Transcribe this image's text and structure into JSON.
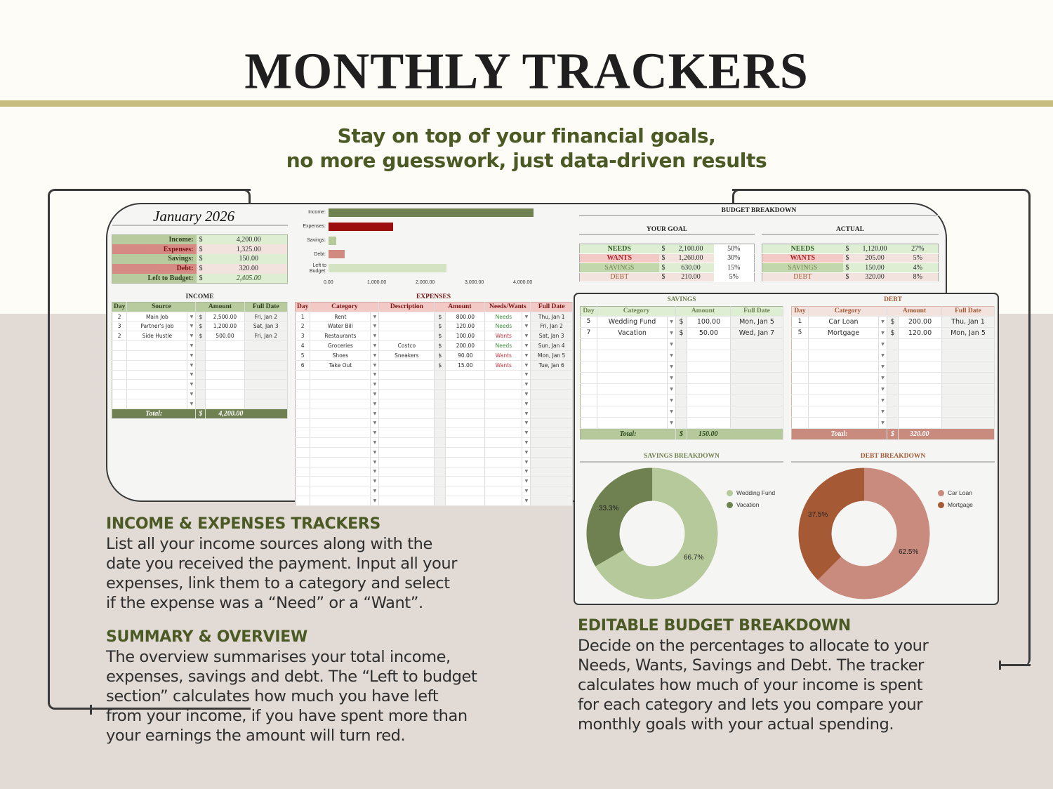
{
  "header": {
    "title": "MONTHLY TRACKERS",
    "subtitle_line1": "Stay on top of your financial goals,",
    "subtitle_line2": "no more guesswork, just data-driven results"
  },
  "summary": {
    "month": "January 2026",
    "rows": [
      {
        "label": "Income:",
        "currency": "$",
        "value": "4,200.00"
      },
      {
        "label": "Expenses:",
        "currency": "$",
        "value": "1,325.00"
      },
      {
        "label": "Savings:",
        "currency": "$",
        "value": "150.00"
      },
      {
        "label": "Debt:",
        "currency": "$",
        "value": "320.00"
      },
      {
        "label": "Left to Budget:",
        "currency": "$",
        "value": "2,405.00"
      }
    ]
  },
  "chart_data": [
    {
      "type": "bar",
      "orientation": "horizontal",
      "title": "",
      "categories": [
        "Income:",
        "Expenses:",
        "Savings:",
        "Debt:",
        "Left to Budget:"
      ],
      "values": [
        4200,
        1325,
        150,
        320,
        2405
      ],
      "colors": [
        "#6f8150",
        "#9c0d0d",
        "#b5c99a",
        "#d08a80",
        "#d4e4c3"
      ],
      "xticks": [
        "0.00",
        "1,000.00",
        "2,000.00",
        "3,000.00",
        "4,000.00"
      ],
      "xlim": [
        0,
        4300
      ],
      "grid": false,
      "xlabel": "",
      "ylabel": ""
    },
    {
      "type": "pie",
      "donut": true,
      "title": "SAVINGS BREAKDOWN",
      "categories": [
        "Wedding Fund",
        "Vacation"
      ],
      "values": [
        100,
        50
      ],
      "labels": [
        "66.7%",
        "33.3%"
      ],
      "colors": [
        "#b5c99a",
        "#6f8150"
      ],
      "legend_position": "right"
    },
    {
      "type": "pie",
      "donut": true,
      "title": "DEBT BREAKDOWN",
      "categories": [
        "Car Loan",
        "Mortgage"
      ],
      "values": [
        200,
        120
      ],
      "labels": [
        "62.5%",
        "37.5%"
      ],
      "colors": [
        "#c98b7e",
        "#a55a35"
      ],
      "legend_position": "right"
    }
  ],
  "income": {
    "title": "INCOME",
    "headers": [
      "Day",
      "Source",
      "Amount",
      "Full Date"
    ],
    "rows": [
      {
        "day": "2",
        "source": "Main Job",
        "cur": "$",
        "amount": "2,500.00",
        "date": "Fri, Jan 2"
      },
      {
        "day": "3",
        "source": "Partner's Job",
        "cur": "$",
        "amount": "1,200.00",
        "date": "Sat, Jan 3"
      },
      {
        "day": "2",
        "source": "Side Hustle",
        "cur": "$",
        "amount": "500.00",
        "date": "Fri, Jan 2"
      }
    ],
    "total_label": "Total:",
    "total_cur": "$",
    "total_value": "4,200.00"
  },
  "expenses": {
    "title": "EXPENSES",
    "headers": [
      "Day",
      "Category",
      "Description",
      "Amount",
      "Needs/Wants",
      "Full Date"
    ],
    "rows": [
      {
        "day": "1",
        "category": "Rent",
        "desc": "",
        "cur": "$",
        "amount": "800.00",
        "nw": "Needs",
        "date": "Thu, Jan 1"
      },
      {
        "day": "2",
        "category": "Water Bill",
        "desc": "",
        "cur": "$",
        "amount": "120.00",
        "nw": "Needs",
        "date": "Fri, Jan 2"
      },
      {
        "day": "3",
        "category": "Restaurants",
        "desc": "",
        "cur": "$",
        "amount": "100.00",
        "nw": "Wants",
        "date": "Sat, Jan 3"
      },
      {
        "day": "4",
        "category": "Groceries",
        "desc": "Costco",
        "cur": "$",
        "amount": "200.00",
        "nw": "Needs",
        "date": "Sun, Jan 4"
      },
      {
        "day": "5",
        "category": "Shoes",
        "desc": "Sneakers",
        "cur": "$",
        "amount": "90.00",
        "nw": "Wants",
        "date": "Mon, Jan 5"
      },
      {
        "day": "6",
        "category": "Take Out",
        "desc": "",
        "cur": "$",
        "amount": "15.00",
        "nw": "Wants",
        "date": "Tue, Jan 6"
      }
    ]
  },
  "budget_breakdown": {
    "title": "BUDGET BREAKDOWN",
    "goal_title": "YOUR GOAL",
    "actual_title": "ACTUAL",
    "goal": [
      {
        "label": "NEEDS",
        "cur": "$",
        "value": "2,100.00",
        "pct": "50%"
      },
      {
        "label": "WANTS",
        "cur": "$",
        "value": "1,260.00",
        "pct": "30%"
      },
      {
        "label": "SAVINGS",
        "cur": "$",
        "value": "630.00",
        "pct": "15%"
      },
      {
        "label": "DEBT",
        "cur": "$",
        "value": "210.00",
        "pct": "5%"
      }
    ],
    "actual": [
      {
        "label": "NEEDS",
        "cur": "$",
        "value": "1,120.00",
        "pct": "27%"
      },
      {
        "label": "WANTS",
        "cur": "$",
        "value": "205.00",
        "pct": "5%"
      },
      {
        "label": "SAVINGS",
        "cur": "$",
        "value": "150.00",
        "pct": "4%"
      },
      {
        "label": "DEBT",
        "cur": "$",
        "value": "320.00",
        "pct": "8%"
      }
    ]
  },
  "savings": {
    "title": "SAVINGS",
    "headers": [
      "Day",
      "Category",
      "Amount",
      "Full Date"
    ],
    "rows": [
      {
        "day": "5",
        "category": "Wedding Fund",
        "cur": "$",
        "amount": "100.00",
        "date": "Mon, Jan 5"
      },
      {
        "day": "7",
        "category": "Vacation",
        "cur": "$",
        "amount": "50.00",
        "date": "Wed, Jan 7"
      }
    ],
    "total_label": "Total:",
    "total_cur": "$",
    "total_value": "150.00",
    "breakdown_title": "SAVINGS BREAKDOWN",
    "legend": [
      "Wedding Fund",
      "Vacation"
    ],
    "pct_major": "66.7%",
    "pct_minor": "33.3%"
  },
  "debt": {
    "title": "DEBT",
    "headers": [
      "Day",
      "Category",
      "Amount",
      "Full Date"
    ],
    "rows": [
      {
        "day": "1",
        "category": "Car Loan",
        "cur": "$",
        "amount": "200.00",
        "date": "Thu, Jan 1"
      },
      {
        "day": "5",
        "category": "Mortgage",
        "cur": "$",
        "amount": "120.00",
        "date": "Mon, Jan 5"
      }
    ],
    "total_label": "Total:",
    "total_cur": "$",
    "total_value": "320.00",
    "breakdown_title": "DEBT BREAKDOWN",
    "legend": [
      "Car Loan",
      "Mortgage"
    ],
    "pct_major": "62.5%",
    "pct_minor": "37.5%"
  },
  "features": {
    "income_expenses": {
      "heading": "INCOME & EXPENSES TRACKERS",
      "lines": [
        "List all your income sources along with the",
        "date you received the payment. Input all your",
        "expenses, link them to a category and select",
        "if the expense was a “Need” or a “Want”."
      ]
    },
    "summary": {
      "heading": "SUMMARY & OVERVIEW",
      "lines": [
        "The overview summarises your total income,",
        "expenses, savings and debt. The “Left to budget",
        "section” calculates how much you have left",
        "from your income, if you have spent more than",
        "your earnings the amount will turn red."
      ]
    },
    "budget": {
      "heading": "EDITABLE BUDGET BREAKDOWN",
      "lines": [
        "Decide on the percentages to allocate to your",
        "Needs, Wants, Savings and Debt. The tracker",
        "calculates how much of your income is spent",
        "for each category and lets you compare your",
        "monthly goals with your actual spending."
      ]
    }
  }
}
